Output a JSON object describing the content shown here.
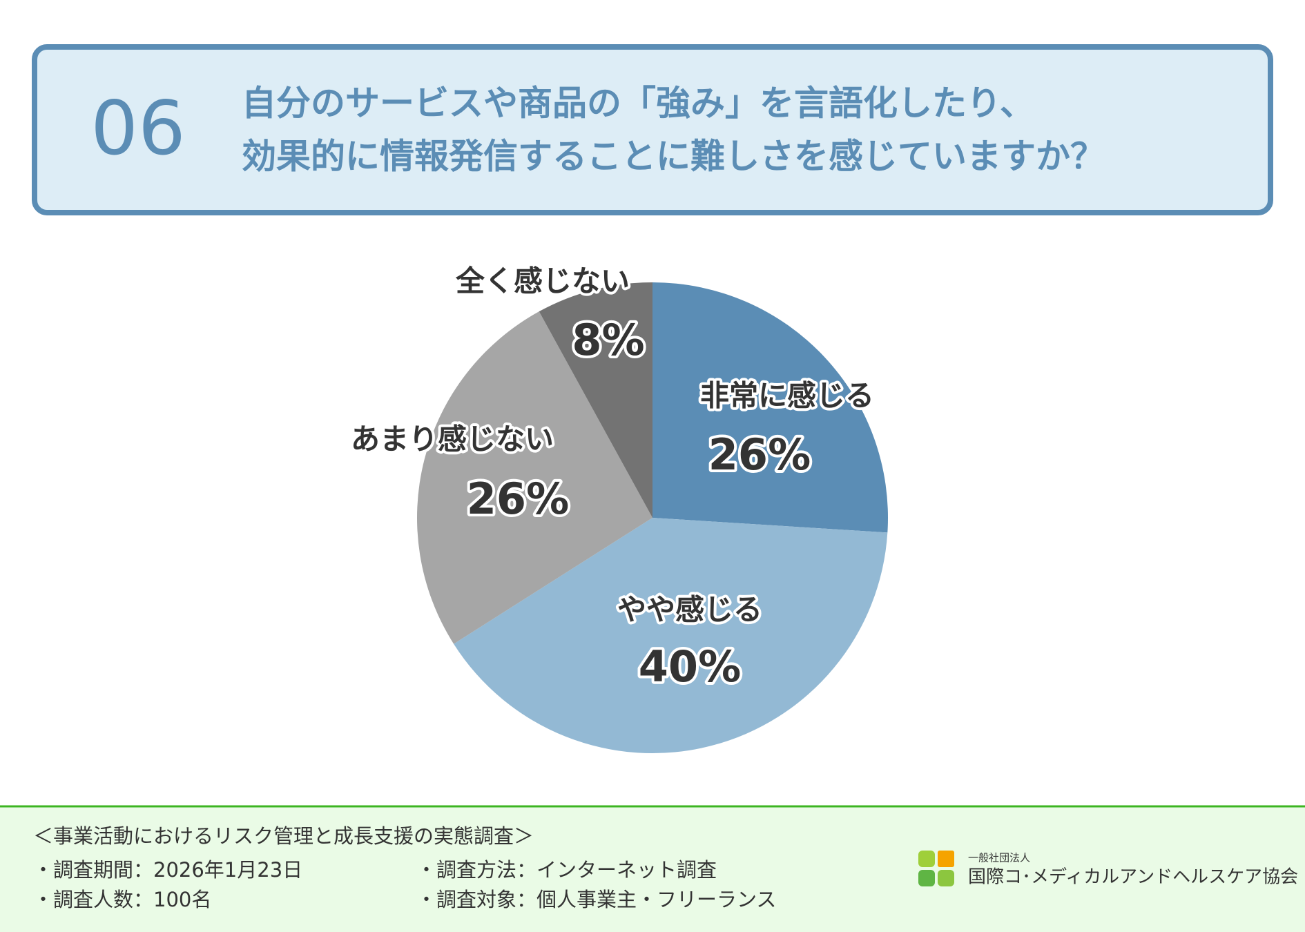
{
  "header": {
    "number": "06",
    "question_lines": [
      "自分のサービスや商品の「強み」を言語化したり、",
      "効果的に情報発信することに難しさを感じていますか？"
    ]
  },
  "chart_data": {
    "type": "pie",
    "categories": [
      "非常に感じる",
      "やや感じる",
      "あまり感じない",
      "全く感じない"
    ],
    "values": [
      26,
      40,
      26,
      8
    ],
    "value_labels": [
      "26%",
      "40%",
      "26%",
      "8%"
    ],
    "colors": [
      "#5b8db5",
      "#93b9d4",
      "#a6a6a6",
      "#737373"
    ]
  },
  "footer": {
    "survey_title": "＜事業活動におけるリスク管理と成長支援の実態調査＞",
    "items": [
      "・調査期間：2026年1月23日",
      "・調査方法：インターネット調査",
      "・調査人数：100名",
      "・調査対象：個人事業主・フリーランス"
    ],
    "org_type": "一般社団法人",
    "org_name": "国際コ･メディカルアンドヘルスケア協会"
  }
}
